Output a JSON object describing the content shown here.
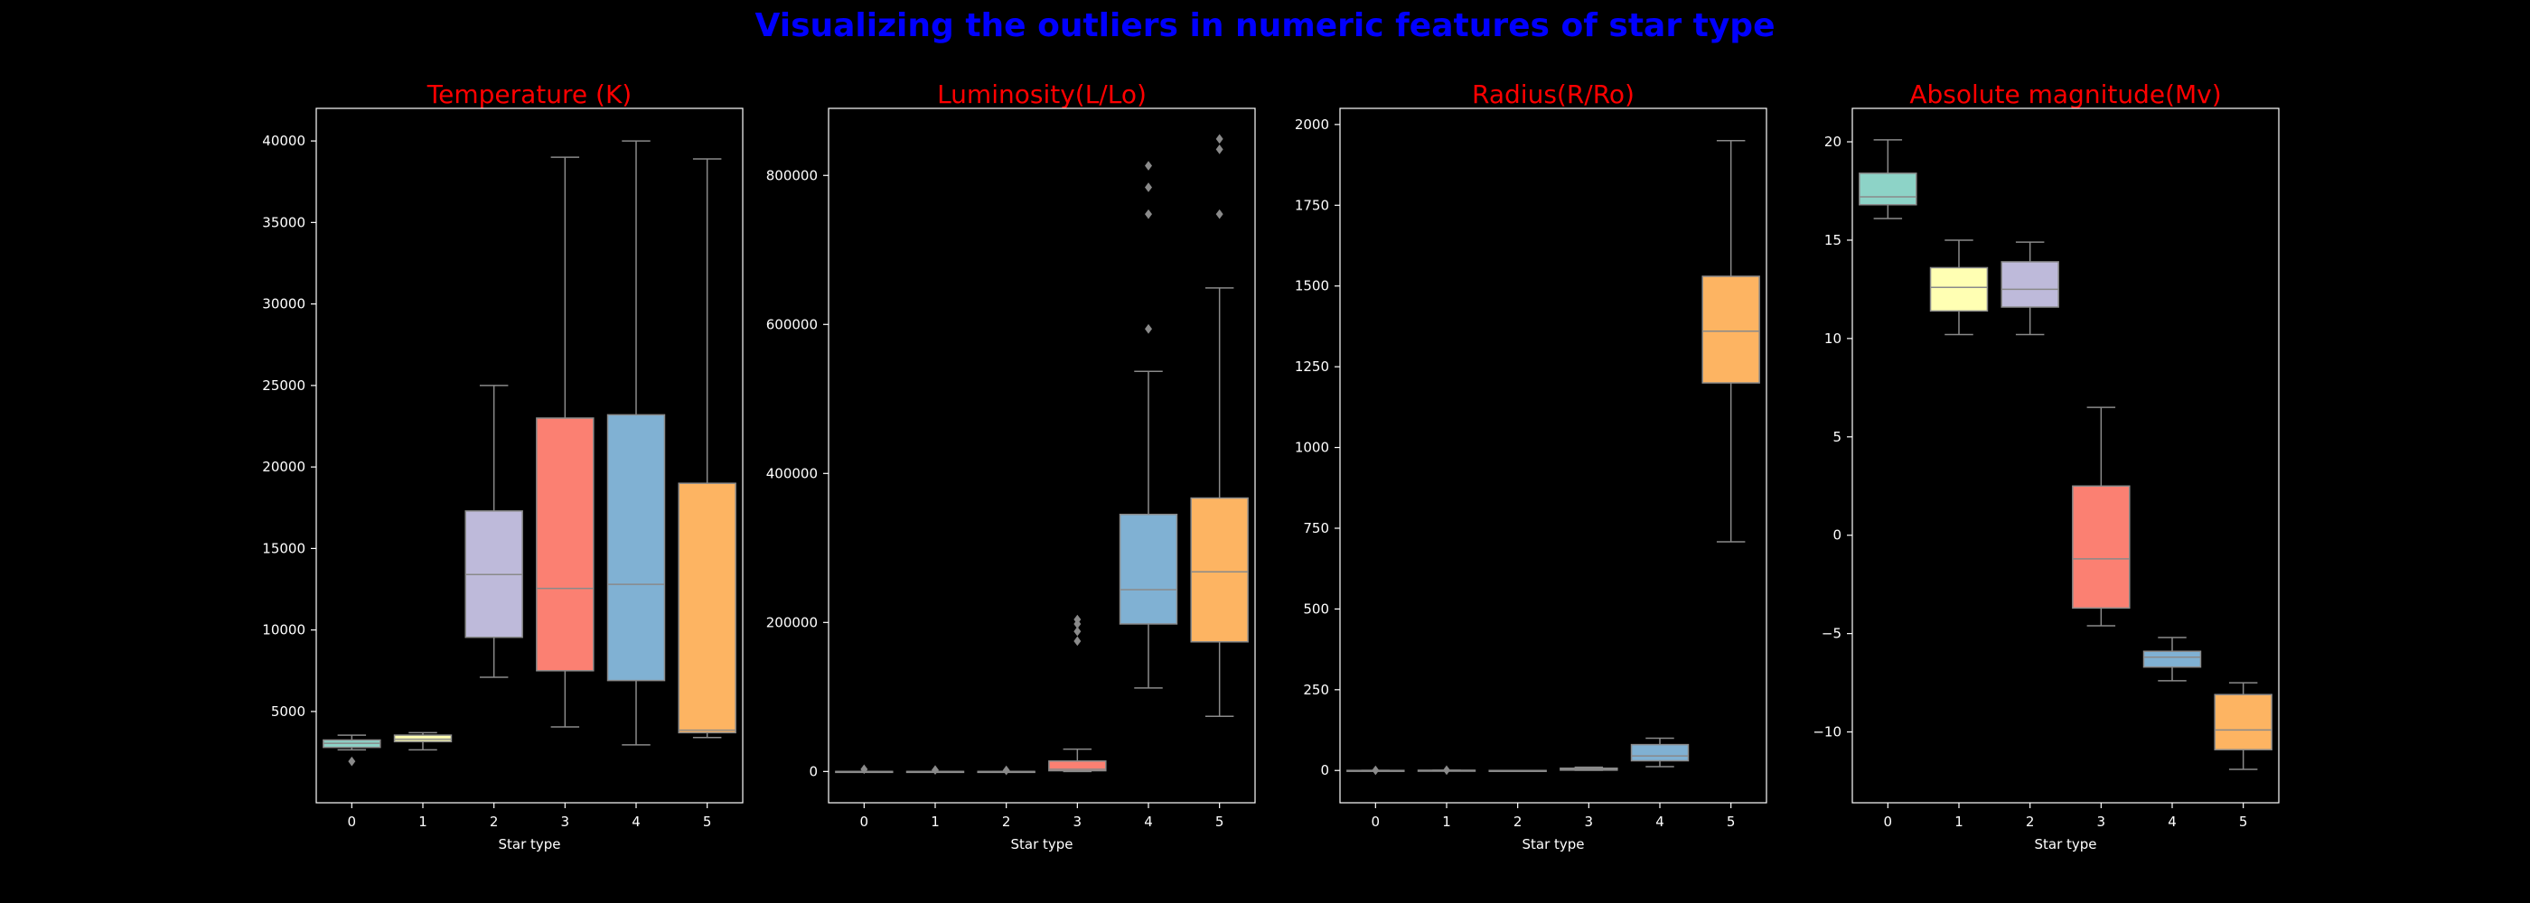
{
  "title": "Visualizing the outliers in numeric features of star type",
  "colors": {
    "background": "#000000",
    "title": "#0000ff",
    "subplot_title": "#ff0000",
    "axis": "#ffffff",
    "whisker": "#8a8a8a",
    "box_fills": [
      "#8dd3c7",
      "#ffffb3",
      "#bebada",
      "#fb8072",
      "#80b1d3",
      "#fdb462"
    ]
  },
  "chart_data": [
    {
      "type": "box",
      "title": "Temperature (K)",
      "xlabel": "Star type",
      "ylabel": "",
      "categories": [
        "0",
        "1",
        "2",
        "3",
        "4",
        "5"
      ],
      "ylim": [
        -600,
        42000
      ],
      "yticks": [
        5000,
        10000,
        15000,
        20000,
        25000,
        30000,
        35000,
        40000
      ],
      "ytick_labels": [
        "5000",
        "10000",
        "15000",
        "20000",
        "25000",
        "30000",
        "35000",
        "40000"
      ],
      "boxes": [
        {
          "category": "0",
          "whislo": 2650,
          "q1": 2800,
          "med": 3050,
          "q3": 3250,
          "whishi": 3550,
          "fliers": [
            1940
          ]
        },
        {
          "category": "1",
          "whislo": 2650,
          "q1": 3150,
          "med": 3300,
          "q3": 3550,
          "whishi": 3700,
          "fliers": []
        },
        {
          "category": "2",
          "whislo": 7100,
          "q1": 9550,
          "med": 13400,
          "q3": 17300,
          "whishi": 25000,
          "fliers": []
        },
        {
          "category": "3",
          "whislo": 4050,
          "q1": 7500,
          "med": 12550,
          "q3": 23000,
          "whishi": 39000,
          "fliers": []
        },
        {
          "category": "4",
          "whislo": 2950,
          "q1": 6900,
          "med": 12800,
          "q3": 23200,
          "whishi": 40000,
          "fliers": []
        },
        {
          "category": "5",
          "whislo": 3400,
          "q1": 3700,
          "med": 3850,
          "q3": 19000,
          "whishi": 38900,
          "fliers": []
        }
      ]
    },
    {
      "type": "box",
      "title": "Luminosity(L/Lo)",
      "xlabel": "Star type",
      "ylabel": "",
      "categories": [
        "0",
        "1",
        "2",
        "3",
        "4",
        "5"
      ],
      "ylim": [
        -42000,
        890000
      ],
      "yticks": [
        0,
        200000,
        400000,
        600000,
        800000
      ],
      "ytick_labels": [
        "0",
        "200000",
        "400000",
        "600000",
        "800000"
      ],
      "boxes": [
        {
          "category": "0",
          "whislo": 0,
          "q1": 0,
          "med": 0,
          "q3": 0.005,
          "whishi": 0.01,
          "fliers": [
            3000
          ]
        },
        {
          "category": "1",
          "whislo": 0,
          "q1": 0,
          "med": 0,
          "q3": 0,
          "whishi": 0,
          "fliers": [
            2000
          ]
        },
        {
          "category": "2",
          "whislo": 0,
          "q1": 0,
          "med": 0,
          "q3": 0,
          "whishi": 0,
          "fliers": [
            1500
          ]
        },
        {
          "category": "3",
          "whislo": 0,
          "q1": 1000,
          "med": 3000,
          "q3": 14000,
          "whishi": 30000,
          "fliers": [
            175000,
            188000,
            198000,
            204000
          ]
        },
        {
          "category": "4",
          "whislo": 112000,
          "q1": 198000,
          "med": 244000,
          "q3": 345000,
          "whishi": 537000,
          "fliers": [
            594000,
            748000,
            784000,
            813000
          ]
        },
        {
          "category": "5",
          "whislo": 74000,
          "q1": 174000,
          "med": 268000,
          "q3": 367000,
          "whishi": 649000,
          "fliers": [
            748000,
            835000,
            849000
          ]
        }
      ]
    },
    {
      "type": "box",
      "title": "Radius(R/Ro)",
      "xlabel": "Star type",
      "ylabel": "",
      "categories": [
        "0",
        "1",
        "2",
        "3",
        "4",
        "5"
      ],
      "ylim": [
        -100,
        2050
      ],
      "yticks": [
        0,
        250,
        500,
        750,
        1000,
        1250,
        1500,
        1750,
        2000
      ],
      "ytick_labels": [
        "0",
        "250",
        "500",
        "750",
        "1000",
        "1250",
        "1500",
        "1750",
        "2000"
      ],
      "boxes": [
        {
          "category": "0",
          "whislo": 0.08,
          "q1": 0.1,
          "med": 0.12,
          "q3": 0.16,
          "whishi": 0.19,
          "fliers": [
            0.5
          ]
        },
        {
          "category": "1",
          "whislo": 0.1,
          "q1": 0.2,
          "med": 0.35,
          "q3": 0.55,
          "whishi": 0.7,
          "fliers": [
            1
          ]
        },
        {
          "category": "2",
          "whislo": 0.008,
          "q1": 0.01,
          "med": 0.012,
          "q3": 0.014,
          "whishi": 0.015,
          "fliers": []
        },
        {
          "category": "3",
          "whislo": 0.8,
          "q1": 1,
          "med": 4,
          "q3": 7,
          "whishi": 10,
          "fliers": []
        },
        {
          "category": "4",
          "whislo": 12,
          "q1": 30,
          "med": 45,
          "q3": 80,
          "whishi": 100,
          "fliers": []
        },
        {
          "category": "5",
          "whislo": 708,
          "q1": 1200,
          "med": 1360,
          "q3": 1530,
          "whishi": 1950,
          "fliers": []
        }
      ]
    },
    {
      "type": "box",
      "title": "Absolute magnitude(Mv)",
      "xlabel": "Star type",
      "ylabel": "",
      "categories": [
        "0",
        "1",
        "2",
        "3",
        "4",
        "5"
      ],
      "ylim": [
        -13.6,
        21.7
      ],
      "yticks": [
        -10,
        -5,
        0,
        5,
        10,
        15,
        20
      ],
      "ytick_labels": [
        "−10",
        "−5",
        "0",
        "5",
        "10",
        "15",
        "20"
      ],
      "boxes": [
        {
          "category": "0",
          "whislo": 16.1,
          "q1": 16.8,
          "med": 17.2,
          "q3": 18.4,
          "whishi": 20.1,
          "fliers": []
        },
        {
          "category": "1",
          "whislo": 10.2,
          "q1": 11.4,
          "med": 12.6,
          "q3": 13.6,
          "whishi": 15.0,
          "fliers": []
        },
        {
          "category": "2",
          "whislo": 10.2,
          "q1": 11.6,
          "med": 12.5,
          "q3": 13.9,
          "whishi": 14.9,
          "fliers": []
        },
        {
          "category": "3",
          "whislo": -4.6,
          "q1": -3.7,
          "med": -1.2,
          "q3": 2.5,
          "whishi": 6.5,
          "fliers": []
        },
        {
          "category": "4",
          "whislo": -7.4,
          "q1": -6.7,
          "med": -6.2,
          "q3": -5.9,
          "whishi": -5.2,
          "fliers": []
        },
        {
          "category": "5",
          "whislo": -11.9,
          "q1": -10.9,
          "med": -9.9,
          "q3": -8.1,
          "whishi": -7.5,
          "fliers": []
        }
      ]
    }
  ]
}
